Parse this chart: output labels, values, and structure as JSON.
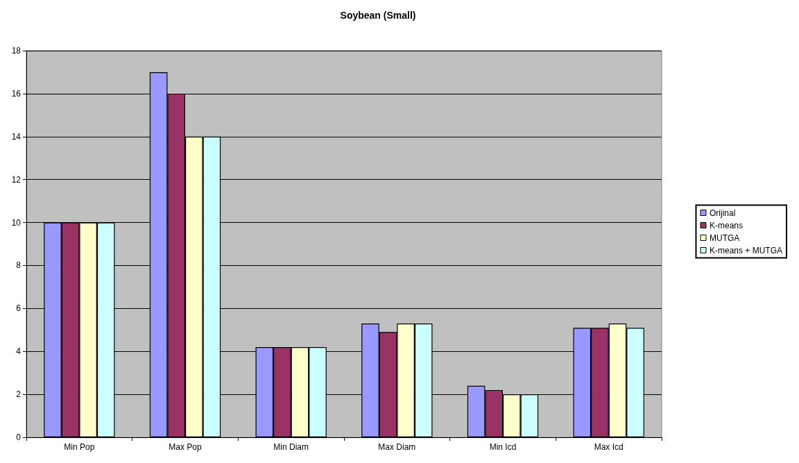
{
  "chart_data": {
    "type": "bar",
    "title": "Soybean (Small)",
    "categories": [
      "Min Pop",
      "Max Pop",
      "Min Diam",
      "Max Diam",
      "Min Icd",
      "Max Icd"
    ],
    "series": [
      {
        "name": "Orijinal",
        "color": "#9999ff",
        "values": [
          10,
          17,
          4.2,
          5.3,
          2.4,
          5.1
        ]
      },
      {
        "name": "K-means",
        "color": "#993366",
        "values": [
          10,
          16,
          4.2,
          4.9,
          2.2,
          5.1
        ]
      },
      {
        "name": "MUTGA",
        "color": "#ffffcc",
        "values": [
          10,
          14,
          4.2,
          5.3,
          2,
          5.3
        ]
      },
      {
        "name": "K-means + MUTGA",
        "color": "#ccffff",
        "values": [
          10,
          14,
          4.2,
          5.3,
          2,
          5.1
        ]
      }
    ],
    "ylim": [
      0,
      18
    ],
    "yticks": [
      0,
      2,
      4,
      6,
      8,
      10,
      12,
      14,
      16,
      18
    ],
    "grid": "y",
    "legend": "right"
  }
}
